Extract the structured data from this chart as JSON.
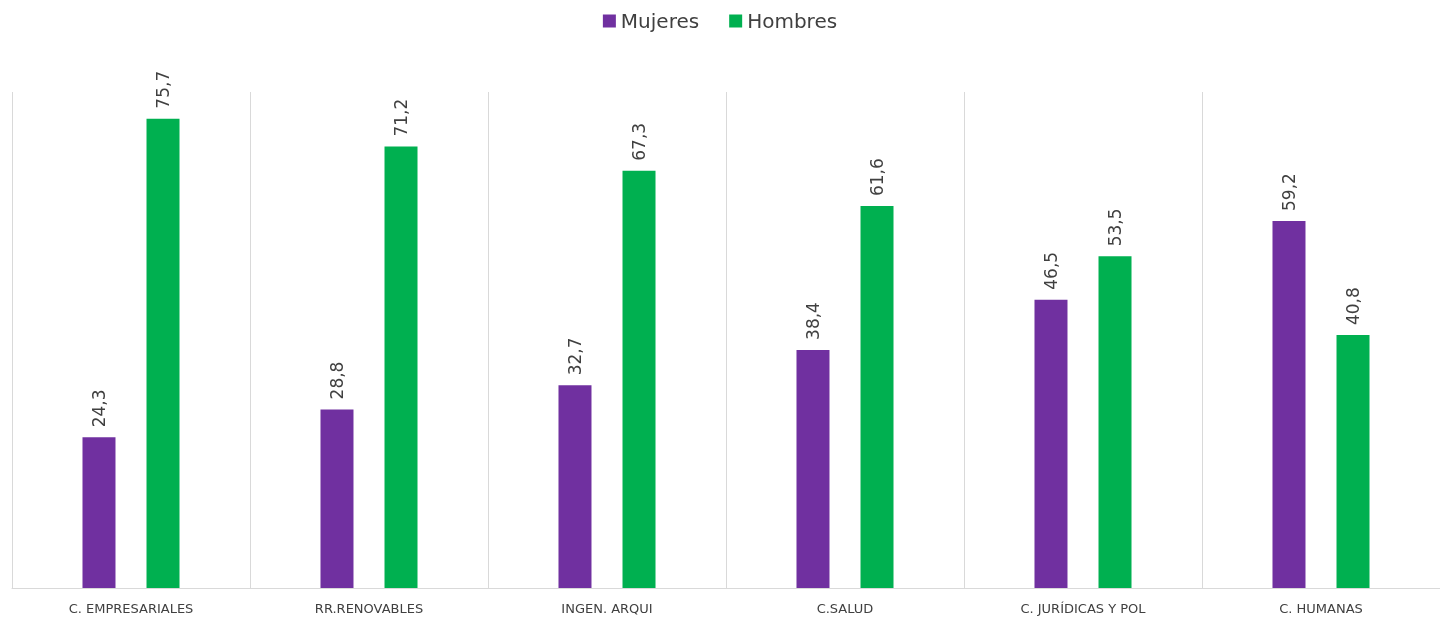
{
  "chart_data": {
    "type": "bar",
    "categories": [
      "C. EMPRESARIALES",
      "RR.RENOVABLES",
      "INGEN. ARQUI",
      "C.SALUD",
      "C. JURÍDICAS Y POL",
      "C. HUMANAS"
    ],
    "series": [
      {
        "name": "Mujeres",
        "color": "#7030a0",
        "values": [
          24.3,
          28.8,
          32.7,
          38.4,
          46.5,
          59.2
        ],
        "value_labels": [
          "24,3",
          "28,8",
          "32,7",
          "38,4",
          "46,5",
          "59,2"
        ]
      },
      {
        "name": "Hombres",
        "color": "#00b050",
        "values": [
          75.7,
          71.2,
          67.3,
          61.6,
          53.5,
          40.8
        ],
        "value_labels": [
          "75,7",
          "71,2",
          "67,3",
          "61,6",
          "53,5",
          "40,8"
        ]
      }
    ],
    "ylim": [
      0,
      80
    ],
    "tick_labels": "x",
    "grid": "x",
    "legend": "top"
  }
}
